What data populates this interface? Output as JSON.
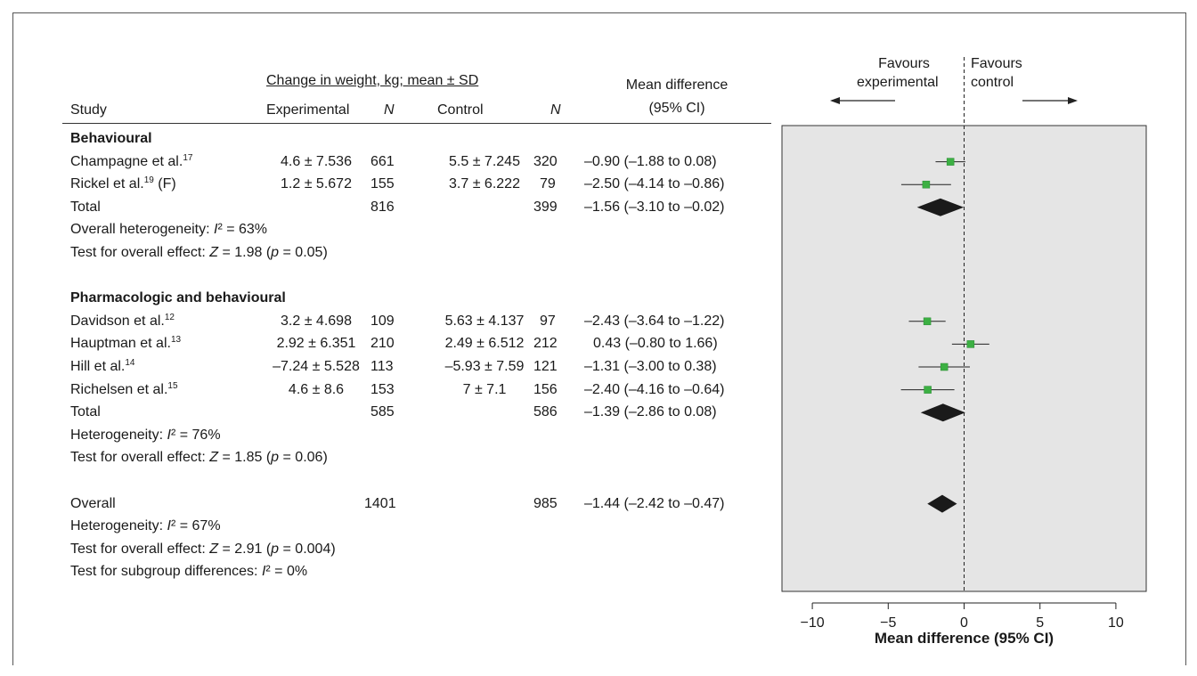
{
  "header": {
    "group_label": "Change in weight, kg; mean ± SD",
    "study": "Study",
    "experimental": "Experimental",
    "n": "N",
    "control": "Control",
    "md_line1": "Mean difference",
    "md_line2": "(95% CI)",
    "favours_experimental_1": "Favours",
    "favours_experimental_2": "experimental",
    "favours_control_1": "Favours",
    "favours_control_2": "control"
  },
  "rows": [
    {
      "type": "group",
      "label": "Behavioural"
    },
    {
      "type": "study",
      "name": "Champagne et al.",
      "ref": "17",
      "suffix": "",
      "exp": "4.6 ± 7.536",
      "exp_n": "661",
      "ctl": "5.5 ± 7.245",
      "ctl_n": "320",
      "md": "–0.90 (–1.88 to 0.08)"
    },
    {
      "type": "study",
      "name": "Rickel et al.",
      "ref": "19",
      "suffix": " (F)",
      "exp": "1.2 ± 5.672",
      "exp_n": "155",
      "ctl": "3.7 ± 6.222",
      "ctl_n": "79",
      "md": "–2.50 (–4.14 to –0.86)"
    },
    {
      "type": "total",
      "name": "Total",
      "exp_n": "816",
      "ctl_n": "399",
      "md": "–1.56 (–3.10 to –0.02)"
    },
    {
      "type": "het",
      "prefix": "Overall heterogeneity: ",
      "sym": "I",
      "rest": "² = 63%"
    },
    {
      "type": "test",
      "prefix": "Test for overall effect: ",
      "sym": "Z",
      "mid": " = 1.98 (",
      "sym2": "p",
      "rest": " = 0.05)"
    },
    {
      "type": "blank"
    },
    {
      "type": "group",
      "label": "Pharmacologic and behavioural"
    },
    {
      "type": "study",
      "name": "Davidson et al.",
      "ref": "12",
      "suffix": "",
      "exp": "3.2 ± 4.698",
      "exp_n": "109",
      "ctl": "5.63 ± 4.137",
      "ctl_n": "97",
      "md": "–2.43 (–3.64 to –1.22)"
    },
    {
      "type": "study",
      "name": "Hauptman et al.",
      "ref": "13",
      "suffix": "",
      "exp": "2.92 ± 6.351",
      "exp_n": "210",
      "ctl": "2.49 ± 6.512",
      "ctl_n": "212",
      "md": "0.43 (–0.80 to 1.66)"
    },
    {
      "type": "study",
      "name": "Hill et al.",
      "ref": "14",
      "suffix": "",
      "exp": "–7.24 ± 5.528",
      "exp_n": "113",
      "ctl": "–5.93 ± 7.59",
      "ctl_n": "121",
      "md": "–1.31 (–3.00 to 0.38)"
    },
    {
      "type": "study",
      "name": "Richelsen et al.",
      "ref": "15",
      "suffix": "",
      "exp": "4.6 ± 8.6",
      "exp_n": "153",
      "ctl": "7 ± 7.1",
      "ctl_n": "156",
      "md": "–2.40 (–4.16 to –0.64)"
    },
    {
      "type": "total",
      "name": "Total",
      "exp_n": "585",
      "ctl_n": "586",
      "md": "–1.39 (–2.86 to 0.08)"
    },
    {
      "type": "het",
      "prefix": "Heterogeneity: ",
      "sym": "I",
      "rest": "² = 76%"
    },
    {
      "type": "test",
      "prefix": "Test for overall effect: ",
      "sym": "Z",
      "mid": " = 1.85 (",
      "sym2": "p",
      "rest": " = 0.06)"
    },
    {
      "type": "blank"
    },
    {
      "type": "total",
      "name": "Overall",
      "exp_n": "1401",
      "ctl_n": "985",
      "md": "–1.44 (–2.42 to –0.47)"
    },
    {
      "type": "het",
      "prefix": "Heterogeneity: ",
      "sym": "I",
      "rest": "² = 67%"
    },
    {
      "type": "test",
      "prefix": "Test for overall effect: ",
      "sym": "Z",
      "mid": " = 2.91 (",
      "sym2": "p",
      "rest": " = 0.004)"
    },
    {
      "type": "het",
      "prefix": "Test for subgroup differences: ",
      "sym": "I",
      "rest": "² = 0%"
    }
  ],
  "chart_data": {
    "type": "forest",
    "xlabel": "Mean difference (95% CI)",
    "xlim": [
      -12,
      12
    ],
    "xticks": [
      -10,
      -5,
      0,
      5,
      10
    ],
    "null_line": 0,
    "panel_color": "#e5e5e5",
    "marker_color": "#3cb043",
    "diamond_color": "#1a1a1a",
    "studies": [
      {
        "row": 1,
        "estimate": -0.9,
        "lower": -1.88,
        "upper": 0.08
      },
      {
        "row": 2,
        "estimate": -2.5,
        "lower": -4.14,
        "upper": -0.86
      },
      {
        "row": 8,
        "estimate": -2.43,
        "lower": -3.64,
        "upper": -1.22
      },
      {
        "row": 9,
        "estimate": 0.43,
        "lower": -0.8,
        "upper": 1.66
      },
      {
        "row": 10,
        "estimate": -1.31,
        "lower": -3.0,
        "upper": 0.38
      },
      {
        "row": 11,
        "estimate": -2.4,
        "lower": -4.16,
        "upper": -0.64
      }
    ],
    "pooled": [
      {
        "row": 3,
        "estimate": -1.56,
        "lower": -3.1,
        "upper": -0.02
      },
      {
        "row": 12,
        "estimate": -1.39,
        "lower": -2.86,
        "upper": 0.08
      },
      {
        "row": 16,
        "estimate": -1.44,
        "lower": -2.42,
        "upper": -0.47
      }
    ]
  }
}
